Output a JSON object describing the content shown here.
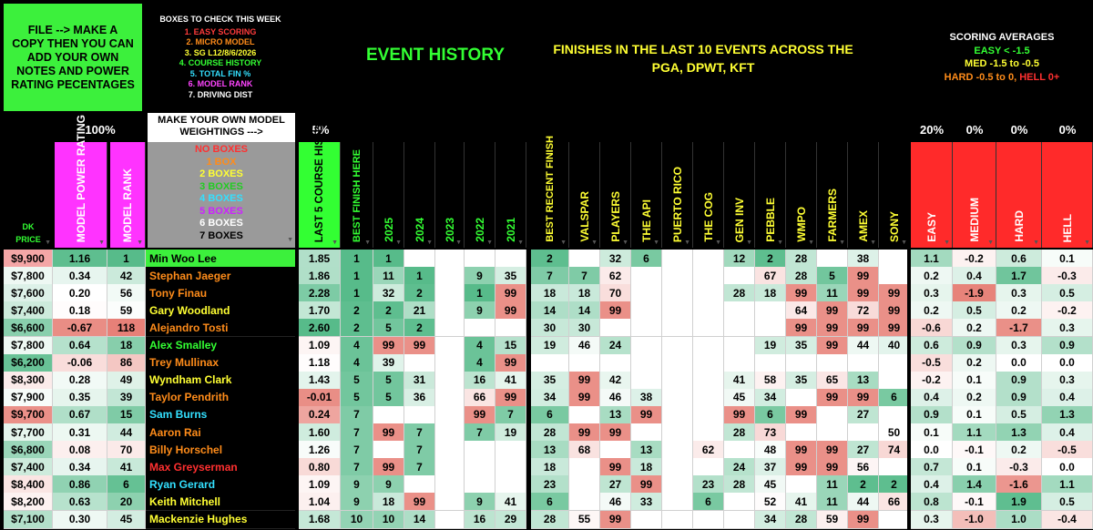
{
  "info_box": {
    "text": "FILE --> MAKE A COPY THEN YOU CAN ADD YOUR OWN NOTES AND POWER RATING PECENTAGES"
  },
  "check_box": {
    "title": "BOXES TO CHECK THIS WEEK",
    "items": [
      {
        "text": "1. EASY SCORING",
        "color": "#ff3b3b"
      },
      {
        "text": "2. MICRO MODEL",
        "color": "#ff8c1a"
      },
      {
        "text": "3. SG L12/8/6/2026",
        "color": "#ffff33"
      },
      {
        "text": "4. COURSE HISTORY",
        "color": "#33ff33"
      },
      {
        "text": "5. TOTAL FIN %",
        "color": "#33e0ff"
      },
      {
        "text": "6. MODEL RANK",
        "color": "#ff44ff"
      },
      {
        "text": "7. DRIVING DIST",
        "color": "#ffffff"
      }
    ]
  },
  "event_history": {
    "title": "EVENT HISTORY",
    "subtitle": "FINISHES IN THE LAST 10 EVENTS ACROSS THE PGA, DPWT, KFT"
  },
  "scoring_avg": {
    "title": "SCORING AVERAGES",
    "easy": "EASY < -1.5",
    "med": "MED -1.5 to -0.5",
    "hard": "HARD -0.5 to 0,",
    "hell": "HELL 0+"
  },
  "weights": {
    "pct_power": "100%",
    "make_model": "MAKE YOUR OWN MODEL WEIGHTINGS --->",
    "pct_course": "5%",
    "pct_easy": "20%",
    "pct_medium": "0%",
    "pct_hard": "0%",
    "pct_hell": "0%"
  },
  "boxes_legend": [
    {
      "text": "NO BOXES",
      "color": "#ff3030"
    },
    {
      "text": "1 BOX",
      "color": "#ff8c1a"
    },
    {
      "text": "2 BOXES",
      "color": "#ffff33"
    },
    {
      "text": "3 BOXES",
      "color": "#22cc22"
    },
    {
      "text": "4 BOXES",
      "color": "#33e0ff"
    },
    {
      "text": "5 BOXES",
      "color": "#cc22ff"
    },
    {
      "text": "6 BOXES",
      "color": "#ffffff"
    },
    {
      "text": "7 BOXES",
      "color": "#000000"
    }
  ],
  "headers": {
    "dk": "DK",
    "price": "PRICE",
    "model_power": "MODEL POWER RATING",
    "model_rank": "MODEL RANK",
    "course_sg": "LAST 5 COURSE HISTORY SG",
    "best_finish": "BEST FINISH HERE",
    "years": [
      "2025",
      "2024",
      "2023",
      "2022",
      "2021"
    ],
    "best_recent": "BEST RECENT FINISH",
    "events": [
      "VALSPAR",
      "PLAYERS",
      "THE API",
      "PUERTO RICO",
      "THE COG",
      "GEN INV",
      "PEBBLE",
      "WMPO",
      "FARMERS",
      "AMEX",
      "SONY"
    ],
    "scoring": [
      "EASY",
      "MEDIUM",
      "HARD",
      "HELL"
    ]
  },
  "rows": [
    {
      "price": "$9,900",
      "pr": "1.16",
      "rank": "1",
      "name": "Min Woo Lee",
      "sg": "1.85",
      "best": "1",
      "years": [
        "1",
        "",
        "",
        "",
        ""
      ],
      "recent": "2",
      "events": [
        "",
        "32",
        "6",
        "",
        "",
        "12",
        "2",
        "28",
        "",
        "38",
        ""
      ],
      "sc": [
        "1.1",
        "-0.2",
        "0.6",
        "0.1"
      ]
    },
    {
      "price": "$7,800",
      "pr": "0.34",
      "rank": "42",
      "name": "Stephan Jaeger",
      "sg": "1.86",
      "best": "1",
      "years": [
        "11",
        "1",
        "",
        "9",
        "35"
      ],
      "recent": "7",
      "events": [
        "7",
        "62",
        "",
        "",
        "",
        "",
        "67",
        "28",
        "5",
        "99",
        ""
      ],
      "sc": [
        "0.2",
        "0.4",
        "1.7",
        "-0.3"
      ]
    },
    {
      "price": "$7,600",
      "pr": "0.20",
      "rank": "56",
      "name": "Tony Finau",
      "sg": "2.28",
      "best": "1",
      "years": [
        "32",
        "2",
        "",
        "1",
        "99"
      ],
      "recent": "18",
      "events": [
        "18",
        "70",
        "",
        "",
        "",
        "28",
        "18",
        "99",
        "11",
        "99",
        "99"
      ],
      "sc": [
        "0.3",
        "-1.9",
        "0.3",
        "0.5"
      ]
    },
    {
      "price": "$7,400",
      "pr": "0.18",
      "rank": "59",
      "name": "Gary Woodland",
      "sg": "1.70",
      "best": "2",
      "years": [
        "2",
        "21",
        "",
        "9",
        "99"
      ],
      "recent": "14",
      "events": [
        "14",
        "99",
        "",
        "",
        "",
        "",
        "",
        "64",
        "99",
        "72",
        "99"
      ],
      "sc": [
        "0.2",
        "0.5",
        "0.2",
        "-0.2"
      ]
    },
    {
      "price": "$6,600",
      "pr": "-0.67",
      "rank": "118",
      "name": "Alejandro Tosti",
      "sg": "2.60",
      "best": "2",
      "years": [
        "5",
        "2",
        "",
        "",
        ""
      ],
      "recent": "30",
      "events": [
        "30",
        "",
        "",
        "",
        "",
        "",
        "",
        "99",
        "99",
        "99",
        "99"
      ],
      "sc": [
        "-0.6",
        "0.2",
        "-1.7",
        "0.3"
      ]
    },
    {
      "price": "$7,800",
      "pr": "0.64",
      "rank": "18",
      "name": "Alex Smalley",
      "sg": "1.09",
      "best": "4",
      "years": [
        "99",
        "99",
        "",
        "4",
        "15"
      ],
      "recent": "19",
      "events": [
        "46",
        "24",
        "",
        "",
        "",
        "",
        "19",
        "35",
        "99",
        "44",
        "40"
      ],
      "sc": [
        "0.6",
        "0.9",
        "0.3",
        "0.9"
      ]
    },
    {
      "price": "$6,200",
      "pr": "-0.06",
      "rank": "86",
      "name": "Trey Mullinax",
      "sg": "1.18",
      "best": "4",
      "years": [
        "39",
        "",
        "",
        "4",
        "99"
      ],
      "recent": "",
      "events": [
        "",
        "",
        "",
        "",
        "",
        "",
        "",
        "",
        "",
        "",
        ""
      ],
      "sc": [
        "-0.5",
        "0.2",
        "0.0",
        "0.0"
      ]
    },
    {
      "price": "$8,300",
      "pr": "0.28",
      "rank": "49",
      "name": "Wyndham Clark",
      "sg": "1.43",
      "best": "5",
      "years": [
        "5",
        "31",
        "",
        "16",
        "41"
      ],
      "recent": "35",
      "events": [
        "99",
        "42",
        "",
        "",
        "",
        "41",
        "58",
        "35",
        "65",
        "13",
        ""
      ],
      "sc": [
        "-0.2",
        "0.1",
        "0.9",
        "0.3"
      ]
    },
    {
      "price": "$7,900",
      "pr": "0.35",
      "rank": "39",
      "name": "Taylor Pendrith",
      "sg": "-0.01",
      "best": "5",
      "years": [
        "5",
        "36",
        "",
        "66",
        "99"
      ],
      "recent": "34",
      "events": [
        "99",
        "46",
        "38",
        "",
        "",
        "45",
        "34",
        "",
        "99",
        "99",
        "6"
      ],
      "sc": [
        "0.4",
        "0.2",
        "0.9",
        "0.4"
      ]
    },
    {
      "price": "$9,700",
      "pr": "0.67",
      "rank": "15",
      "name": "Sam Burns",
      "sg": "0.24",
      "best": "7",
      "years": [
        "",
        "",
        "",
        "99",
        "7"
      ],
      "recent": "6",
      "events": [
        "",
        "13",
        "99",
        "",
        "",
        "99",
        "6",
        "99",
        "",
        "27",
        ""
      ],
      "sc": [
        "0.9",
        "0.1",
        "0.5",
        "1.3"
      ]
    },
    {
      "price": "$7,700",
      "pr": "0.31",
      "rank": "44",
      "name": "Aaron Rai",
      "sg": "1.60",
      "best": "7",
      "years": [
        "99",
        "7",
        "",
        "7",
        "19"
      ],
      "recent": "28",
      "events": [
        "99",
        "99",
        "",
        "",
        "",
        "28",
        "73",
        "",
        "",
        "",
        "50"
      ],
      "sc": [
        "0.1",
        "1.1",
        "1.3",
        "0.4"
      ]
    },
    {
      "price": "$6,800",
      "pr": "0.08",
      "rank": "70",
      "name": "Billy Horschel",
      "sg": "1.26",
      "best": "7",
      "years": [
        "",
        "7",
        "",
        "",
        ""
      ],
      "recent": "13",
      "events": [
        "68",
        "",
        "13",
        "",
        "62",
        "",
        "48",
        "99",
        "99",
        "27",
        "74"
      ],
      "sc": [
        "0.0",
        "-0.1",
        "0.2",
        "-0.5"
      ]
    },
    {
      "price": "$7,400",
      "pr": "0.34",
      "rank": "41",
      "name": "Max Greyserman",
      "sg": "0.80",
      "best": "7",
      "years": [
        "99",
        "7",
        "",
        "",
        ""
      ],
      "recent": "18",
      "events": [
        "",
        "99",
        "18",
        "",
        "",
        "24",
        "37",
        "99",
        "99",
        "56",
        ""
      ],
      "sc": [
        "0.7",
        "0.1",
        "-0.3",
        "0.0"
      ]
    },
    {
      "price": "$8,400",
      "pr": "0.86",
      "rank": "6",
      "name": "Ryan Gerard",
      "sg": "1.09",
      "best": "9",
      "years": [
        "9",
        "",
        "",
        "",
        ""
      ],
      "recent": "23",
      "events": [
        "",
        "27",
        "99",
        "",
        "23",
        "28",
        "45",
        "",
        "11",
        "2",
        "2"
      ],
      "sc": [
        "0.4",
        "1.4",
        "-1.6",
        "1.1"
      ]
    },
    {
      "price": "$8,200",
      "pr": "0.63",
      "rank": "20",
      "name": "Keith Mitchell",
      "sg": "1.04",
      "best": "9",
      "years": [
        "18",
        "99",
        "",
        "9",
        "41"
      ],
      "recent": "6",
      "events": [
        "",
        "46",
        "33",
        "",
        "6",
        "",
        "52",
        "41",
        "11",
        "44",
        "66"
      ],
      "sc": [
        "0.8",
        "-0.1",
        "1.9",
        "0.5"
      ]
    },
    {
      "price": "$7,100",
      "pr": "0.30",
      "rank": "45",
      "name": "Mackenzie Hughes",
      "sg": "1.68",
      "best": "10",
      "years": [
        "10",
        "14",
        "",
        "16",
        "29"
      ],
      "recent": "28",
      "events": [
        "55",
        "99",
        "",
        "",
        "",
        "",
        "34",
        "28",
        "59",
        "99",
        ""
      ],
      "sc": [
        "0.3",
        "-1.0",
        "1.0",
        "-0.4"
      ]
    }
  ],
  "name_colors": [
    "#ffffff",
    "#ff8c1a",
    "#ff8c1a",
    "#ffff33",
    "#ff8c1a",
    "#33ff33",
    "#ff8c1a",
    "#ffff33",
    "#ff8c1a",
    "#33e0ff",
    "#ff8c1a",
    "#ff8c1a",
    "#ff3030",
    "#33e0ff",
    "#ffff33",
    "#ffff33"
  ]
}
